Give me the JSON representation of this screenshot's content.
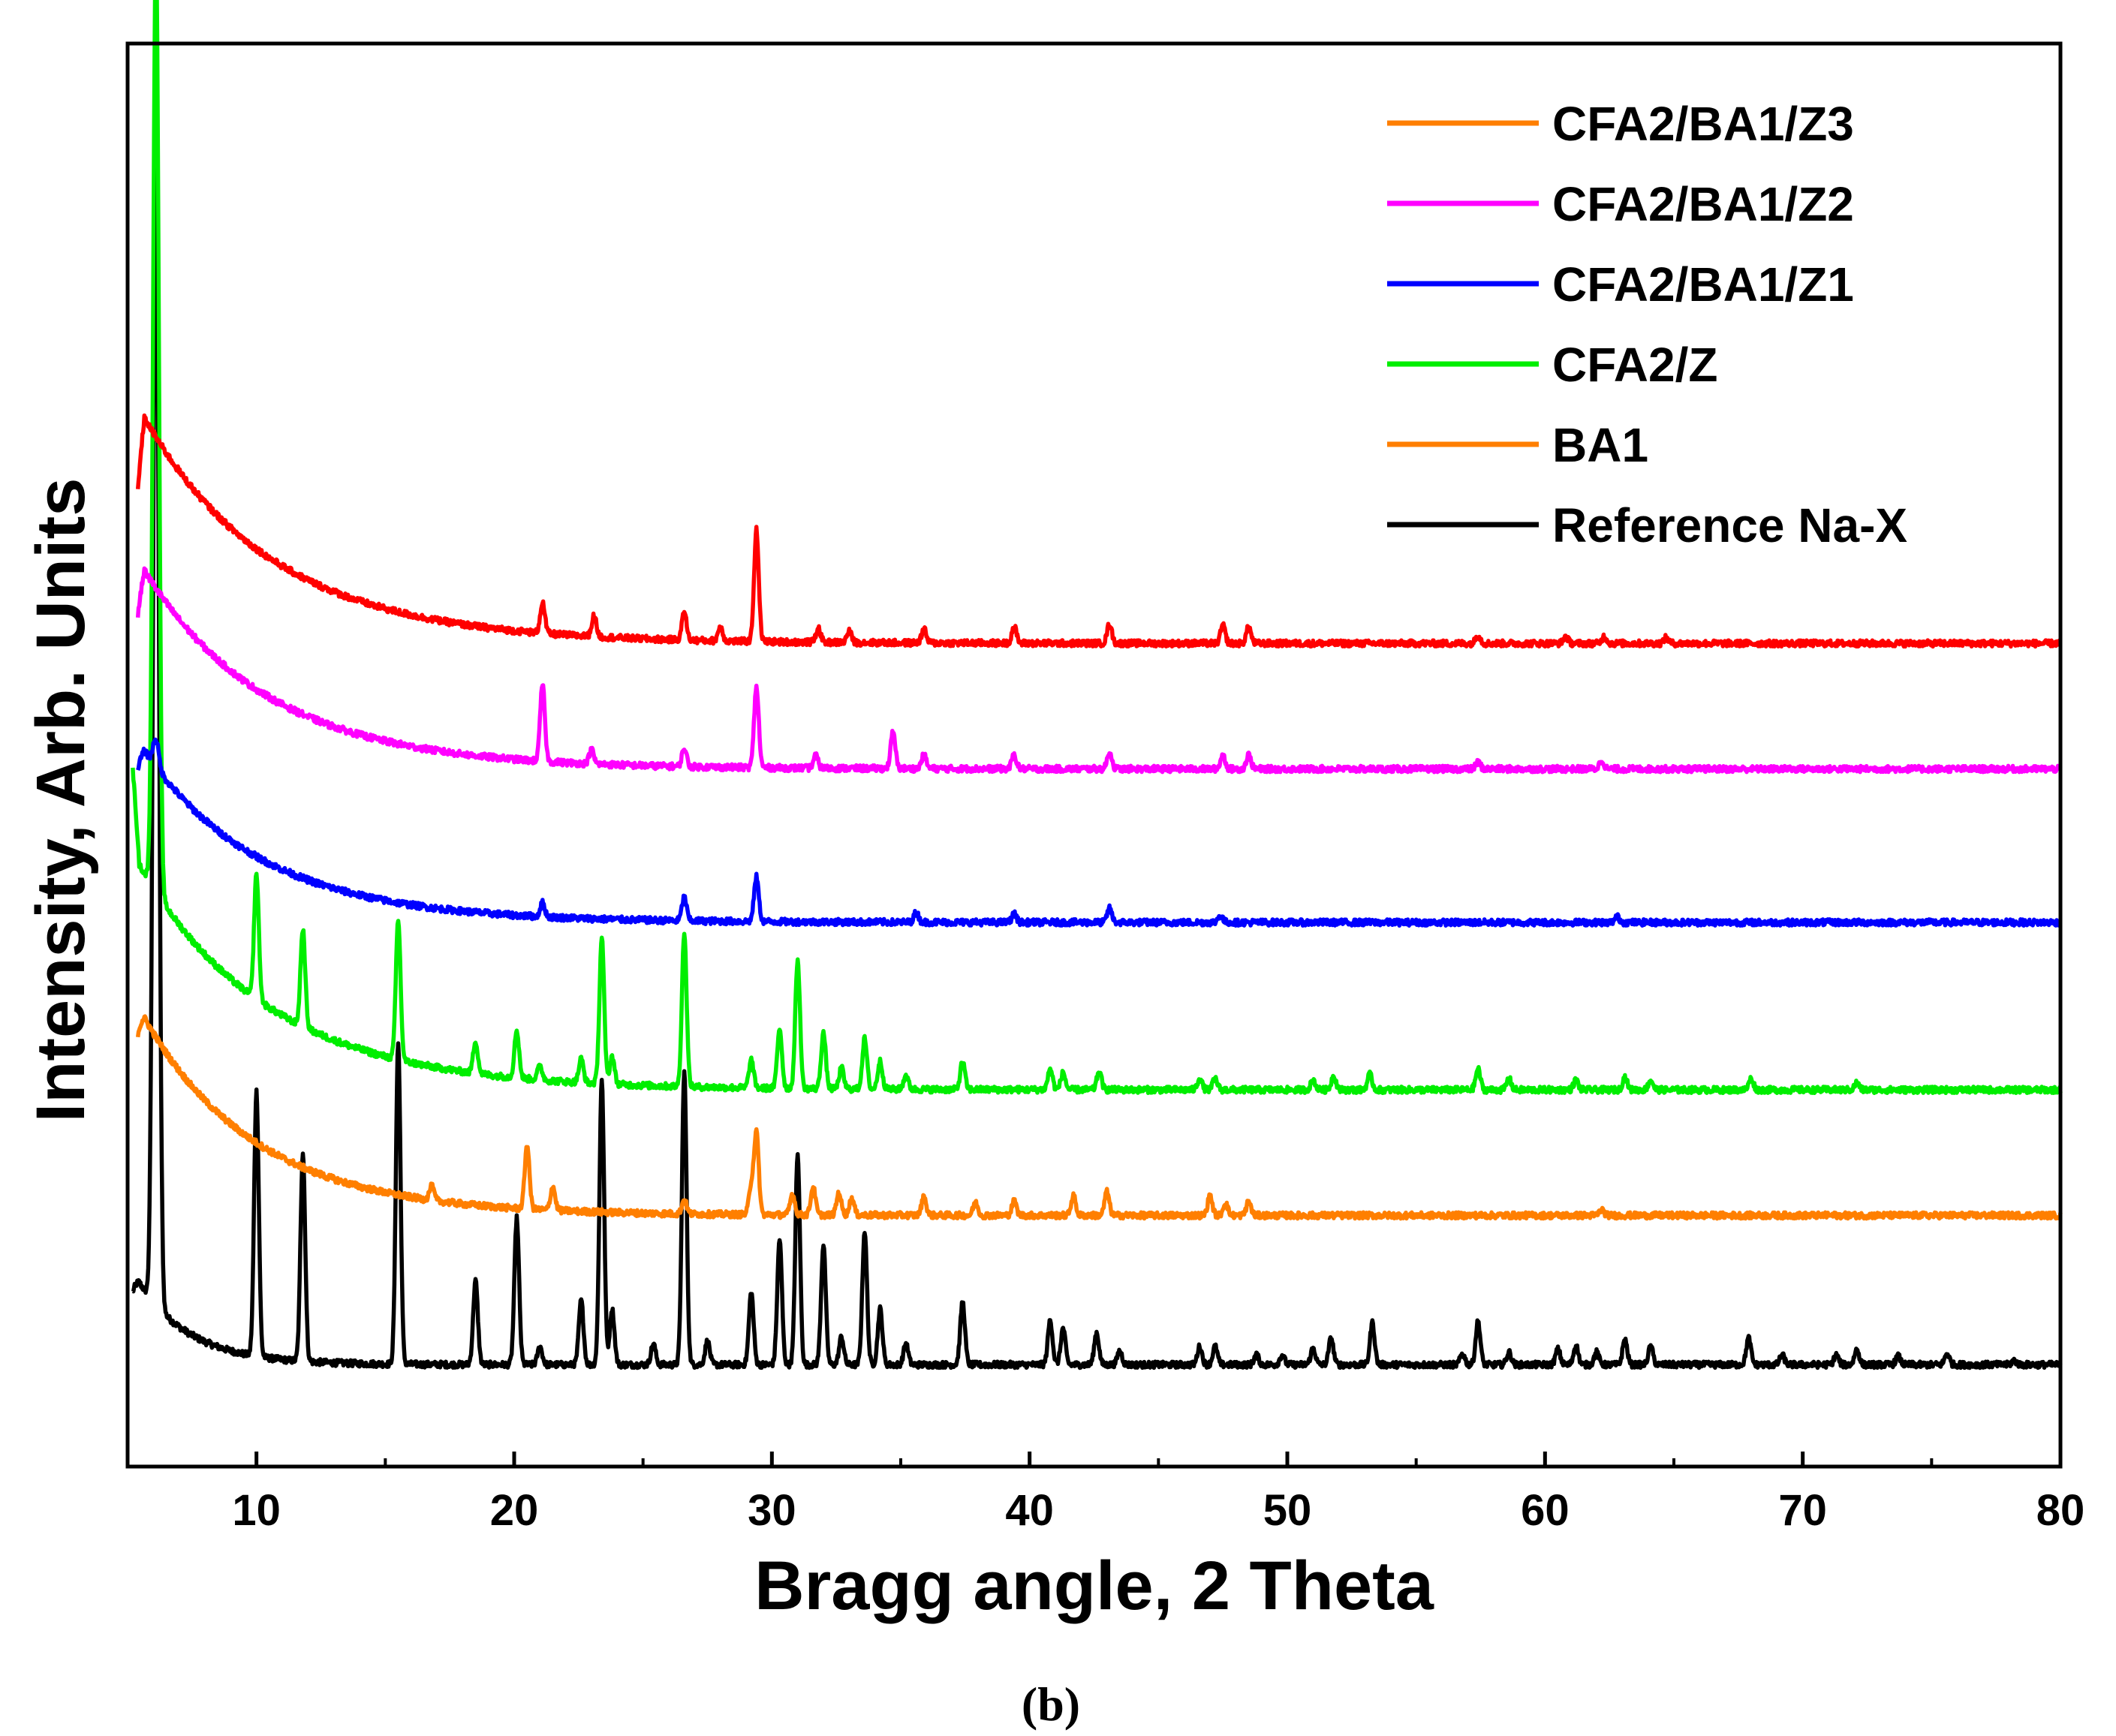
{
  "chart_data": {
    "type": "line",
    "title": "",
    "xlabel": "Bragg angle, 2 Theta",
    "ylabel": "Intensity, Arb. Units",
    "caption": "(b)",
    "xlim": [
      5,
      80
    ],
    "ylim": [
      -2,
      100
    ],
    "xticks": [
      10,
      20,
      30,
      40,
      50,
      60,
      70,
      80
    ],
    "legend_position": "top-right",
    "legend": [
      {
        "label": "CFA2/BA1/Z3",
        "color": "#ff7f00"
      },
      {
        "label": "CFA2/BA1/Z2",
        "color": "#ff00ff"
      },
      {
        "label": "CFA2/BA1/Z1",
        "color": "#0000ff"
      },
      {
        "label": "CFA2/Z",
        "color": "#00ee00"
      },
      {
        "label": "BA1",
        "color": "#ff7f00"
      },
      {
        "label": "Reference Na-X",
        "color": "#000000"
      }
    ],
    "series": [
      {
        "name": "CFA2/BA1/Z3",
        "color": "#ff0000",
        "baseline_end": 57.0,
        "baseline_start": 74.0,
        "decay": 0.2,
        "start_x": 5.4,
        "start_y": 68.0,
        "peaks": [
          [
            21.1,
            2.2
          ],
          [
            23.1,
            1.5
          ],
          [
            26.6,
            2.0
          ],
          [
            28.0,
            1.0
          ],
          [
            29.4,
            8.0
          ],
          [
            31.8,
            1.0
          ],
          [
            33.0,
            0.8
          ],
          [
            35.9,
            1.0
          ],
          [
            39.4,
            1.2
          ],
          [
            43.1,
            1.4
          ],
          [
            47.5,
            1.3
          ],
          [
            48.5,
            1.2
          ],
          [
            57.4,
            0.6
          ],
          [
            60.8,
            0.5
          ],
          [
            62.3,
            0.5
          ],
          [
            64.7,
            0.4
          ]
        ]
      },
      {
        "name": "CFA2/BA1/Z2",
        "color": "#ff00ff",
        "baseline_end": 48.0,
        "baseline_start": 63.0,
        "decay": 0.21,
        "start_x": 5.4,
        "start_y": 59.0,
        "peaks": [
          [
            21.1,
            5.5
          ],
          [
            23.0,
            1.0
          ],
          [
            26.6,
            1.3
          ],
          [
            29.4,
            5.8
          ],
          [
            31.7,
            0.9
          ],
          [
            34.7,
            2.6
          ],
          [
            35.9,
            1.0
          ],
          [
            39.4,
            1.0
          ],
          [
            43.1,
            1.2
          ],
          [
            47.5,
            1.0
          ],
          [
            48.5,
            1.0
          ],
          [
            57.4,
            0.5
          ],
          [
            62.2,
            0.6
          ]
        ]
      },
      {
        "name": "CFA2/BA1/Z1",
        "color": "#0000ff",
        "baseline_end": 37.0,
        "baseline_start": 50.0,
        "decay": 0.22,
        "start_x": 5.4,
        "start_y": 48.0,
        "peaks": [
          [
            6.1,
            2.0
          ],
          [
            21.1,
            1.0
          ],
          [
            26.6,
            1.7
          ],
          [
            29.4,
            3.2
          ],
          [
            35.6,
            0.7
          ],
          [
            39.4,
            0.6
          ],
          [
            43.1,
            1.0
          ],
          [
            47.4,
            0.5
          ],
          [
            62.8,
            0.4
          ]
        ]
      },
      {
        "name": "CFA2/Z",
        "color": "#00ee00",
        "baseline_end": 25.0,
        "baseline_start": 42.0,
        "decay": 0.2,
        "start_x": 5.2,
        "start_y": 48.0,
        "peaks": [
          [
            6.1,
            68.0
          ],
          [
            10.0,
            9.0
          ],
          [
            11.8,
            7.0
          ],
          [
            15.5,
            10.0
          ],
          [
            18.5,
            2.3
          ],
          [
            20.1,
            3.4
          ],
          [
            21.0,
            1.0
          ],
          [
            22.6,
            1.7
          ],
          [
            23.4,
            10.5
          ],
          [
            23.8,
            2.0
          ],
          [
            26.6,
            11.0
          ],
          [
            29.2,
            2.0
          ],
          [
            30.3,
            4.3
          ],
          [
            31.0,
            9.2
          ],
          [
            32.0,
            4.0
          ],
          [
            32.7,
            1.5
          ],
          [
            33.6,
            3.6
          ],
          [
            34.2,
            2.0
          ],
          [
            35.2,
            1.0
          ],
          [
            37.4,
            2.0
          ],
          [
            40.8,
            1.5
          ],
          [
            41.3,
            1.2
          ],
          [
            42.7,
            1.3
          ],
          [
            46.6,
            0.8
          ],
          [
            47.2,
            0.8
          ],
          [
            51.0,
            0.7
          ],
          [
            51.8,
            1.0
          ],
          [
            53.2,
            1.1
          ],
          [
            57.4,
            1.5
          ],
          [
            58.6,
            0.8
          ],
          [
            61.2,
            0.7
          ],
          [
            63.1,
            0.9
          ],
          [
            64.1,
            0.7
          ],
          [
            68.0,
            0.8
          ],
          [
            72.1,
            0.5
          ]
        ]
      },
      {
        "name": "BA1",
        "color": "#ff7f00",
        "baseline_end": 16.0,
        "baseline_start": 31.0,
        "decay": 0.23,
        "start_x": 5.4,
        "start_y": 29.0,
        "peaks": [
          [
            16.8,
            1.0
          ],
          [
            20.5,
            4.6
          ],
          [
            21.5,
            1.7
          ],
          [
            26.6,
            1.0
          ],
          [
            29.2,
            2.0
          ],
          [
            29.4,
            5.8
          ],
          [
            30.8,
            1.5
          ],
          [
            31.6,
            2.0
          ],
          [
            32.6,
            1.6
          ],
          [
            33.1,
            1.2
          ],
          [
            35.9,
            1.3
          ],
          [
            37.9,
            0.9
          ],
          [
            39.4,
            1.0
          ],
          [
            41.7,
            1.4
          ],
          [
            43.0,
            1.7
          ],
          [
            47.0,
            1.4
          ],
          [
            47.6,
            0.9
          ],
          [
            48.5,
            1.0
          ],
          [
            62.2,
            0.4
          ]
        ]
      },
      {
        "name": "Reference Na-X",
        "color": "#000000",
        "baseline_end": 5.3,
        "baseline_start": 12.0,
        "decay": 0.5,
        "start_x": 5.2,
        "start_y": 10.5,
        "peaks": [
          [
            6.1,
            85.0
          ],
          [
            10.0,
            19.0
          ],
          [
            11.8,
            15.0
          ],
          [
            15.5,
            23.0
          ],
          [
            18.5,
            6.0
          ],
          [
            20.1,
            10.5
          ],
          [
            21.0,
            1.3
          ],
          [
            22.6,
            4.6
          ],
          [
            23.4,
            20.5
          ],
          [
            23.8,
            4.0
          ],
          [
            25.4,
            1.5
          ],
          [
            26.6,
            21.0
          ],
          [
            27.5,
            1.7
          ],
          [
            29.2,
            5.2
          ],
          [
            30.3,
            9.0
          ],
          [
            31.0,
            15.0
          ],
          [
            32.0,
            8.6
          ],
          [
            32.7,
            2.0
          ],
          [
            33.6,
            9.6
          ],
          [
            34.2,
            4.0
          ],
          [
            35.2,
            1.5
          ],
          [
            37.4,
            4.5
          ],
          [
            40.8,
            3.2
          ],
          [
            41.3,
            2.6
          ],
          [
            42.6,
            2.3
          ],
          [
            43.5,
            1.0
          ],
          [
            46.6,
            1.3
          ],
          [
            47.2,
            1.3
          ],
          [
            48.8,
            0.7
          ],
          [
            49.8,
            0.7
          ],
          [
            51.0,
            1.2
          ],
          [
            51.7,
            1.9
          ],
          [
            53.3,
            3.0
          ],
          [
            56.8,
            0.8
          ],
          [
            57.4,
            3.1
          ],
          [
            58.6,
            0.9
          ],
          [
            60.5,
            1.1
          ],
          [
            61.2,
            1.4
          ],
          [
            62.0,
            0.9
          ],
          [
            63.1,
            1.8
          ],
          [
            64.1,
            1.3
          ],
          [
            67.9,
            1.9
          ],
          [
            69.2,
            0.7
          ],
          [
            71.3,
            0.7
          ],
          [
            72.1,
            1.1
          ],
          [
            73.7,
            0.6
          ],
          [
            75.6,
            0.8
          ],
          [
            78.2,
            0.3
          ]
        ]
      }
    ]
  }
}
